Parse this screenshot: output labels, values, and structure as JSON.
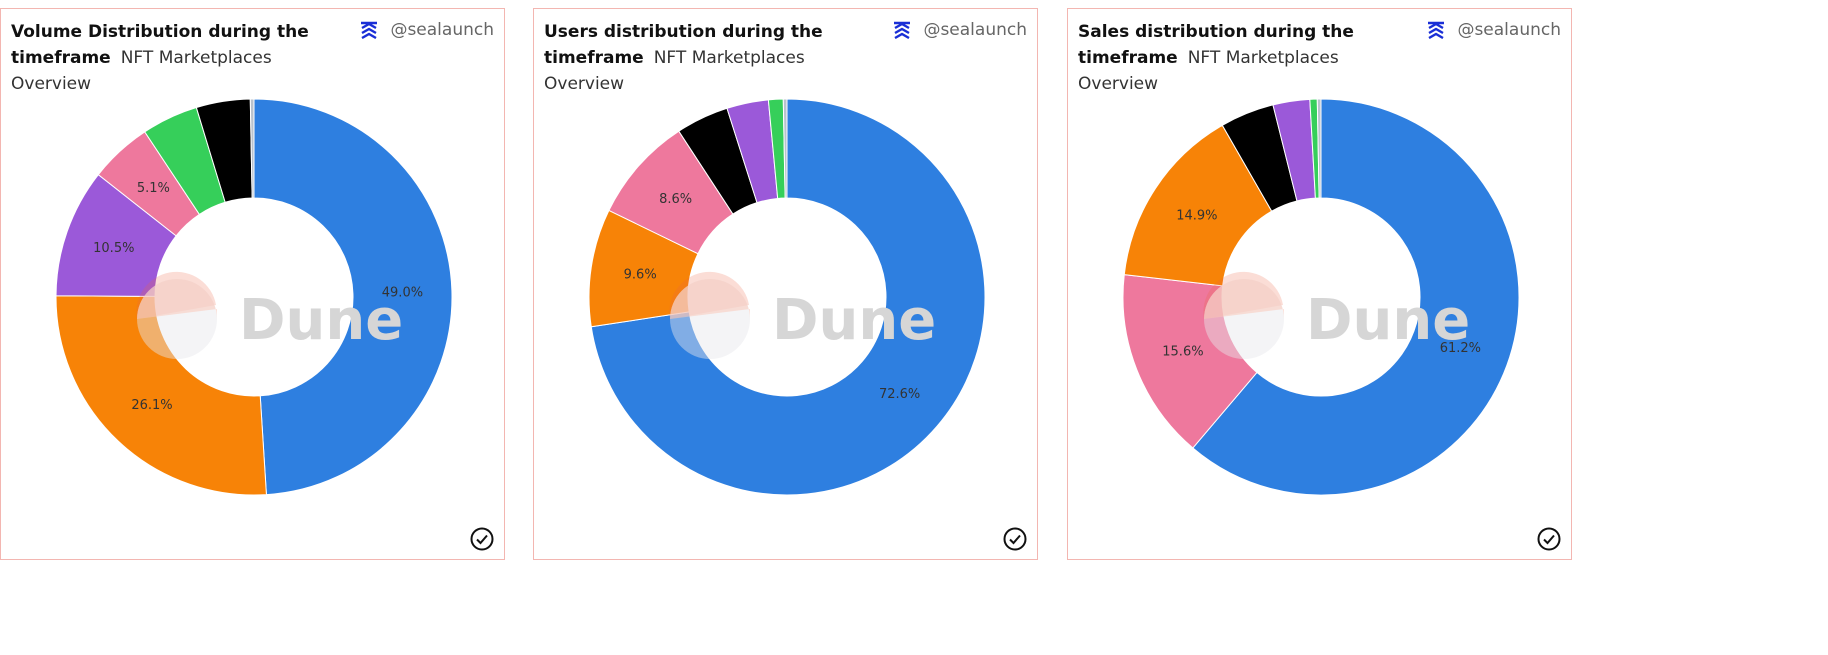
{
  "author": "@sealaunch",
  "colors": {
    "OpenSea": "#2e7fe0",
    "Blur": "#f78307",
    "X2Y2": "#9b59d9",
    "LooksRare": "#ee789d",
    "Element": "#36cf5a",
    "Sudoswap": "#000000",
    "Other": "#b9c2cd"
  },
  "panels": [
    {
      "title": "Volume Distribution during the timeframe",
      "subtitle": "NFT Marketplaces Overview",
      "watermark": "Dune"
    },
    {
      "title": "Users distribution during the timeframe",
      "subtitle": "NFT Marketplaces Overview",
      "watermark": "Dune"
    },
    {
      "title": "Sales distribution during the timeframe",
      "subtitle": "NFT Marketplaces Overview",
      "watermark": "Dune"
    }
  ],
  "chart_data": [
    {
      "type": "pie",
      "title": "Volume Distribution during the timeframe",
      "slices": [
        {
          "color_key": "OpenSea",
          "value": 49.0,
          "label": "49.0%"
        },
        {
          "color_key": "Blur",
          "value": 26.1,
          "label": "26.1%"
        },
        {
          "color_key": "X2Y2",
          "value": 10.5,
          "label": "10.5%"
        },
        {
          "color_key": "LooksRare",
          "value": 5.1,
          "label": "5.1%"
        },
        {
          "color_key": "Element",
          "value": 4.6,
          "label": ""
        },
        {
          "color_key": "Sudoswap",
          "value": 4.4,
          "label": ""
        },
        {
          "color_key": "Other",
          "value": 0.3,
          "label": ""
        }
      ]
    },
    {
      "type": "pie",
      "title": "Users distribution during the timeframe",
      "slices": [
        {
          "color_key": "OpenSea",
          "value": 72.6,
          "label": "72.6%"
        },
        {
          "color_key": "Blur",
          "value": 9.6,
          "label": "9.6%"
        },
        {
          "color_key": "LooksRare",
          "value": 8.6,
          "label": "8.6%"
        },
        {
          "color_key": "Sudoswap",
          "value": 4.3,
          "label": ""
        },
        {
          "color_key": "X2Y2",
          "value": 3.4,
          "label": ""
        },
        {
          "color_key": "Element",
          "value": 1.2,
          "label": ""
        },
        {
          "color_key": "Other",
          "value": 0.3,
          "label": ""
        }
      ]
    },
    {
      "type": "pie",
      "title": "Sales distribution during the timeframe",
      "slices": [
        {
          "color_key": "OpenSea",
          "value": 61.2,
          "label": "61.2%"
        },
        {
          "color_key": "LooksRare",
          "value": 15.6,
          "label": "15.6%"
        },
        {
          "color_key": "Blur",
          "value": 14.9,
          "label": "14.9%"
        },
        {
          "color_key": "Sudoswap",
          "value": 4.4,
          "label": ""
        },
        {
          "color_key": "X2Y2",
          "value": 3.0,
          "label": ""
        },
        {
          "color_key": "Element",
          "value": 0.6,
          "label": ""
        },
        {
          "color_key": "Other",
          "value": 0.3,
          "label": ""
        }
      ]
    }
  ]
}
